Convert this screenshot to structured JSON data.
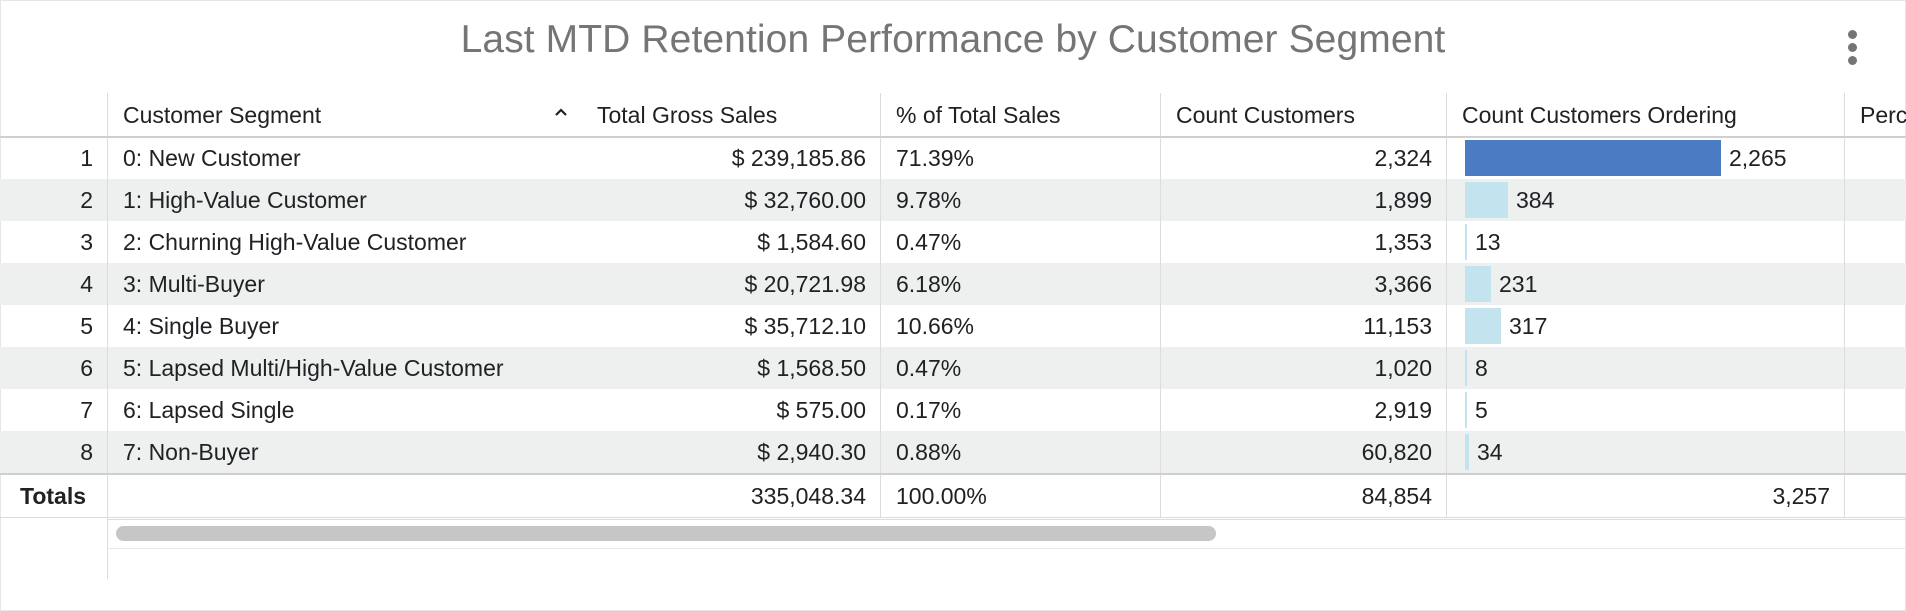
{
  "title": "Last MTD Retention Performance by Customer Segment",
  "menu_icon": "more-vert-icon",
  "columns": [
    {
      "label": "Customer Segment"
    },
    {
      "label": "Total Gross Sales"
    },
    {
      "label": "% of Total Sales"
    },
    {
      "label": "Count Customers"
    },
    {
      "label": "Count Customers Ordering"
    },
    {
      "label": "Perc"
    }
  ],
  "sort_icon": "chevron-up-icon",
  "rows": [
    {
      "index": "1",
      "segment": "0: New Customer",
      "gross_sales": "$ 239,185.86",
      "pct_sales": "71.39%",
      "count_customers": "2,324",
      "ordering": "2,265",
      "ordering_value": 2265
    },
    {
      "index": "2",
      "segment": "1: High-Value Customer",
      "gross_sales": "$ 32,760.00",
      "pct_sales": "9.78%",
      "count_customers": "1,899",
      "ordering": "384",
      "ordering_value": 384
    },
    {
      "index": "3",
      "segment": "2: Churning High-Value Customer",
      "gross_sales": "$ 1,584.60",
      "pct_sales": "0.47%",
      "count_customers": "1,353",
      "ordering": "13",
      "ordering_value": 13
    },
    {
      "index": "4",
      "segment": "3: Multi-Buyer",
      "gross_sales": "$ 20,721.98",
      "pct_sales": "6.18%",
      "count_customers": "3,366",
      "ordering": "231",
      "ordering_value": 231
    },
    {
      "index": "5",
      "segment": "4: Single Buyer",
      "gross_sales": "$ 35,712.10",
      "pct_sales": "10.66%",
      "count_customers": "11,153",
      "ordering": "317",
      "ordering_value": 317
    },
    {
      "index": "6",
      "segment": "5: Lapsed Multi/High-Value Customer",
      "gross_sales": "$ 1,568.50",
      "pct_sales": "0.47%",
      "count_customers": "1,020",
      "ordering": "8",
      "ordering_value": 8
    },
    {
      "index": "7",
      "segment": "6: Lapsed Single",
      "gross_sales": "$ 575.00",
      "pct_sales": "0.17%",
      "count_customers": "2,919",
      "ordering": "5",
      "ordering_value": 5
    },
    {
      "index": "8",
      "segment": "7: Non-Buyer",
      "gross_sales": "$ 2,940.30",
      "pct_sales": "0.88%",
      "count_customers": "60,820",
      "ordering": "34",
      "ordering_value": 34
    }
  ],
  "totals": {
    "label": "Totals",
    "segment": "",
    "gross_sales": "335,048.34",
    "pct_sales": "100.00%",
    "count_customers": "84,854",
    "ordering": "3,257"
  },
  "colors": {
    "bar_max": "#4a7bc3",
    "bar_light": "#c3e3ef",
    "stripe": "#eeefef",
    "title": "#757575"
  }
}
